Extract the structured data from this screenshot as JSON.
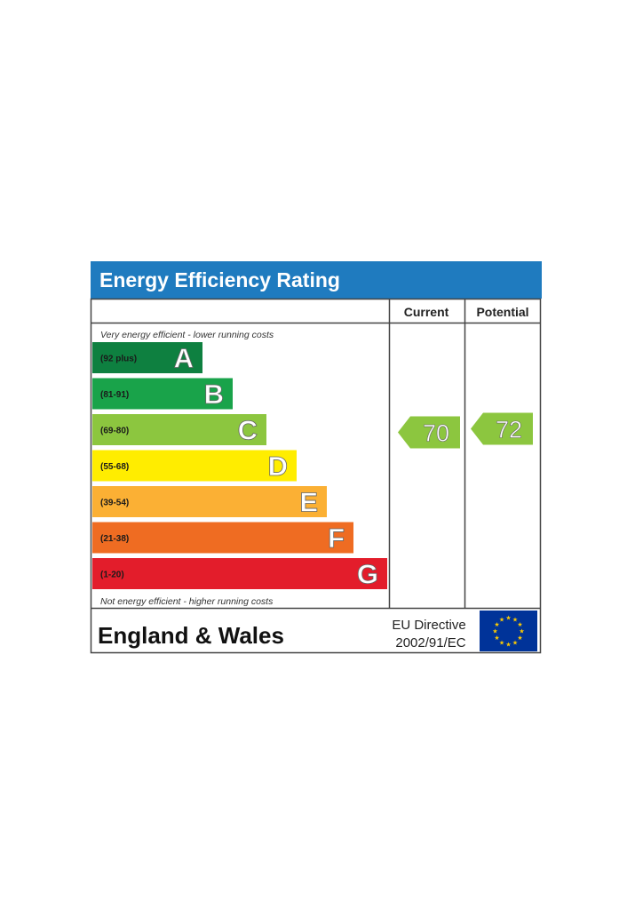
{
  "chart_data": {
    "type": "bar",
    "title": "Energy Efficiency Rating",
    "column_headers": {
      "current": "Current",
      "potential": "Potential"
    },
    "top_note": "Very energy efficient - lower running costs",
    "bottom_note": "Not energy efficient - higher running costs",
    "bands": [
      {
        "letter": "A",
        "range": "(92 plus)",
        "color": "#0e8040"
      },
      {
        "letter": "B",
        "range": "(81-91)",
        "color": "#19a34a"
      },
      {
        "letter": "C",
        "range": "(69-80)",
        "color": "#8cc63f"
      },
      {
        "letter": "D",
        "range": "(55-68)",
        "color": "#ffed00"
      },
      {
        "letter": "E",
        "range": "(39-54)",
        "color": "#fbb034"
      },
      {
        "letter": "F",
        "range": "(21-38)",
        "color": "#ef6c22"
      },
      {
        "letter": "G",
        "range": "(1-20)",
        "color": "#e31d2b"
      }
    ],
    "current": {
      "value": 70,
      "band": "C",
      "color": "#8cc63f"
    },
    "potential": {
      "value": 72,
      "band": "C",
      "color": "#8cc63f"
    },
    "footer": {
      "region": "England & Wales",
      "directive_line1": "EU Directive",
      "directive_line2": "2002/91/EC"
    },
    "colors": {
      "header": "#1f7bbf",
      "eu_flag": "#003399",
      "eu_stars": "#ffcc00",
      "border": "#444444"
    }
  }
}
